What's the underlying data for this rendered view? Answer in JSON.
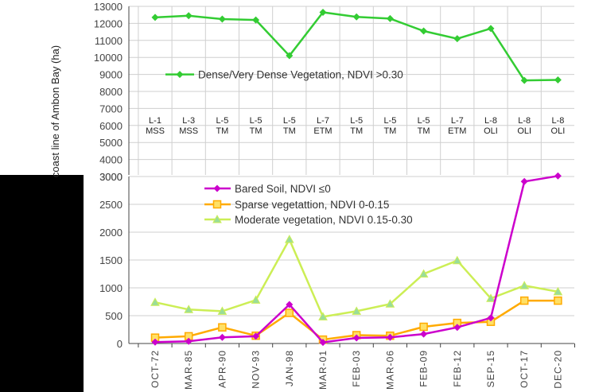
{
  "chart_data": [
    {
      "type": "line",
      "title": "",
      "ylabel": "coast line of Ambon Bay (ha)",
      "ylim": [
        3000,
        13000
      ],
      "yticks": [
        3000,
        4000,
        5000,
        6000,
        7000,
        8000,
        9000,
        10000,
        11000,
        12000,
        13000
      ],
      "grid": true,
      "legend_position": "middle-left",
      "categories": [
        "OCT-72",
        "MAR-85",
        "APR-90",
        "NOV-93",
        "JAN-98",
        "MAR-01",
        "FEB-03",
        "MAR-06",
        "FEB-09",
        "FEB-12",
        "SEP-15",
        "OCT-17",
        "DEC-20"
      ],
      "sensor_labels": [
        [
          "L-1",
          "MSS"
        ],
        [
          "L-3",
          "MSS"
        ],
        [
          "L-5",
          "TM"
        ],
        [
          "L-5",
          "TM"
        ],
        [
          "L-5",
          "TM"
        ],
        [
          "L-7",
          "ETM"
        ],
        [
          "L-5",
          "TM"
        ],
        [
          "L-5",
          "TM"
        ],
        [
          "L-5",
          "TM"
        ],
        [
          "L-7",
          "ETM"
        ],
        [
          "L-8",
          "OLI"
        ],
        [
          "L-8",
          "OLI"
        ],
        [
          "L-8",
          "OLI"
        ]
      ],
      "series": [
        {
          "name": "Dense/Very Dense Vegetation, NDVI >0.30",
          "color": "#33cc33",
          "marker": "diamond",
          "values": [
            12350,
            12450,
            12250,
            12200,
            10100,
            12650,
            12380,
            12280,
            11550,
            11100,
            11700,
            8650,
            8680
          ]
        }
      ]
    },
    {
      "type": "line",
      "title": "",
      "xlabel": "",
      "ylabel": "",
      "ylim": [
        0,
        3000
      ],
      "yticks": [
        0,
        500,
        1000,
        1500,
        2000,
        2500,
        3000
      ],
      "grid": true,
      "legend_position": "top-left",
      "categories": [
        "OCT-72",
        "MAR-85",
        "APR-90",
        "NOV-93",
        "JAN-98",
        "MAR-01",
        "FEB-03",
        "MAR-06",
        "FEB-09",
        "FEB-12",
        "SEP-15",
        "OCT-17",
        "DEC-20"
      ],
      "series": [
        {
          "name": "Bared Soil, NDVI ≤0",
          "color": "#cc00cc",
          "marker": "diamond",
          "values": [
            25,
            40,
            110,
            130,
            700,
            20,
            100,
            110,
            170,
            290,
            460,
            2910,
            3010
          ]
        },
        {
          "name": "Sparse vegetattion, NDVI 0-0.15",
          "color": "#ffaa00",
          "marker": "square",
          "values": [
            105,
            130,
            290,
            140,
            550,
            70,
            150,
            140,
            300,
            370,
            390,
            770,
            770
          ]
        },
        {
          "name": "Moderate vegetation, NDVI 0.15-0.30",
          "color": "#ccee55",
          "marker": "triangle",
          "values": [
            740,
            610,
            580,
            780,
            1870,
            480,
            580,
            710,
            1250,
            1490,
            810,
            1040,
            930
          ]
        }
      ]
    }
  ]
}
